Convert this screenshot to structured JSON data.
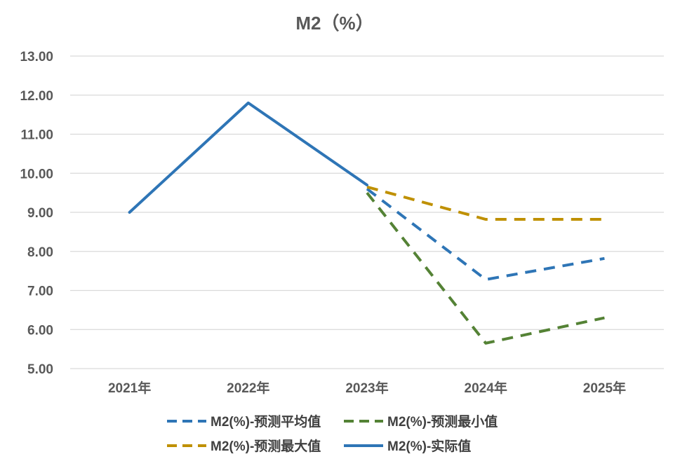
{
  "chart_data": {
    "type": "line",
    "title": "M2（%）",
    "xlabel": "",
    "ylabel": "",
    "categories": [
      "2021年",
      "2022年",
      "2023年",
      "2024年",
      "2025年"
    ],
    "ylim": [
      5,
      13
    ],
    "yticks": [
      "5.00",
      "6.00",
      "7.00",
      "8.00",
      "9.00",
      "10.00",
      "11.00",
      "12.00",
      "13.00"
    ],
    "grid": true,
    "legend_position": "bottom",
    "series": [
      {
        "name": "M2(%)-预测平均值",
        "values": [
          null,
          null,
          9.6,
          7.28,
          7.82
        ],
        "color": "#2e75b6",
        "dash": true
      },
      {
        "name": "M2(%)-预测最小值",
        "values": [
          null,
          null,
          9.5,
          5.65,
          6.3
        ],
        "color": "#548235",
        "dash": true
      },
      {
        "name": "M2(%)-预测最大值",
        "values": [
          null,
          null,
          9.65,
          8.82,
          8.82
        ],
        "color": "#bf9000",
        "dash": true
      },
      {
        "name": "M2(%)-实际值",
        "values": [
          9.0,
          11.8,
          9.7,
          null,
          null
        ],
        "color": "#2e75b6",
        "dash": false
      }
    ]
  }
}
